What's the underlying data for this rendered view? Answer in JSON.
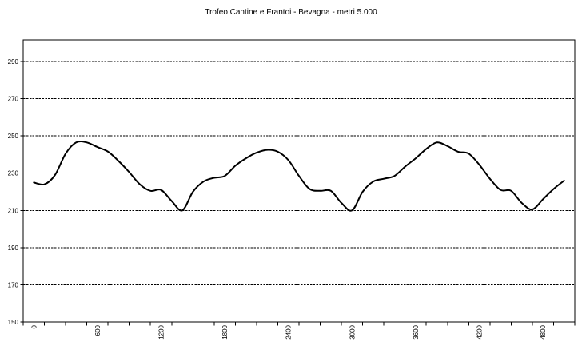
{
  "chart": {
    "title": "Trofeo Cantine e Frantoi - Bevagna - metri 5.000"
  },
  "colors": {
    "line": "#000000",
    "grid": "#000000",
    "axis": "#000000",
    "text": "#000000",
    "background": "#ffffff"
  },
  "chart_data": {
    "type": "line",
    "title": "Trofeo Cantine e Frantoi - Bevagna - metri 5.000",
    "xlabel": "",
    "ylabel": "",
    "legend": false,
    "grid": "horizontal-dashed",
    "smoothed": true,
    "xlim": [
      0,
      5000
    ],
    "ylim": [
      150,
      300
    ],
    "x_minor_tick_interval": 200,
    "x_tick_labels": [
      "0",
      "600",
      "1200",
      "1800",
      "2400",
      "3000",
      "3600",
      "4200",
      "4800"
    ],
    "x_tick_label_values": [
      0,
      600,
      1200,
      1800,
      2400,
      3000,
      3600,
      4200,
      4800
    ],
    "y_ticks": [
      150,
      170,
      190,
      210,
      230,
      250,
      270,
      290
    ],
    "x": [
      0,
      100,
      200,
      300,
      400,
      500,
      600,
      700,
      800,
      900,
      1000,
      1100,
      1200,
      1300,
      1400,
      1500,
      1600,
      1700,
      1800,
      1900,
      2000,
      2100,
      2200,
      2300,
      2400,
      2500,
      2600,
      2700,
      2800,
      2900,
      3000,
      3100,
      3200,
      3300,
      3400,
      3500,
      3600,
      3700,
      3800,
      3900,
      4000,
      4100,
      4200,
      4300,
      4400,
      4500,
      4600,
      4700,
      4800,
      4900,
      5000
    ],
    "values": [
      225,
      224,
      229,
      240.5,
      246.5,
      246.5,
      244,
      241.5,
      236.5,
      230.5,
      224,
      220.5,
      221,
      215,
      210,
      220,
      225.5,
      227.5,
      228.5,
      234,
      238,
      241,
      242.5,
      241.5,
      237,
      228.5,
      221.5,
      220.5,
      220.5,
      214,
      210,
      220,
      225.5,
      227,
      228.5,
      233.5,
      238,
      243,
      246.5,
      244.5,
      241.5,
      240.5,
      234.5,
      227,
      221,
      220.5,
      214,
      210.5,
      216,
      221.5,
      226
    ]
  }
}
